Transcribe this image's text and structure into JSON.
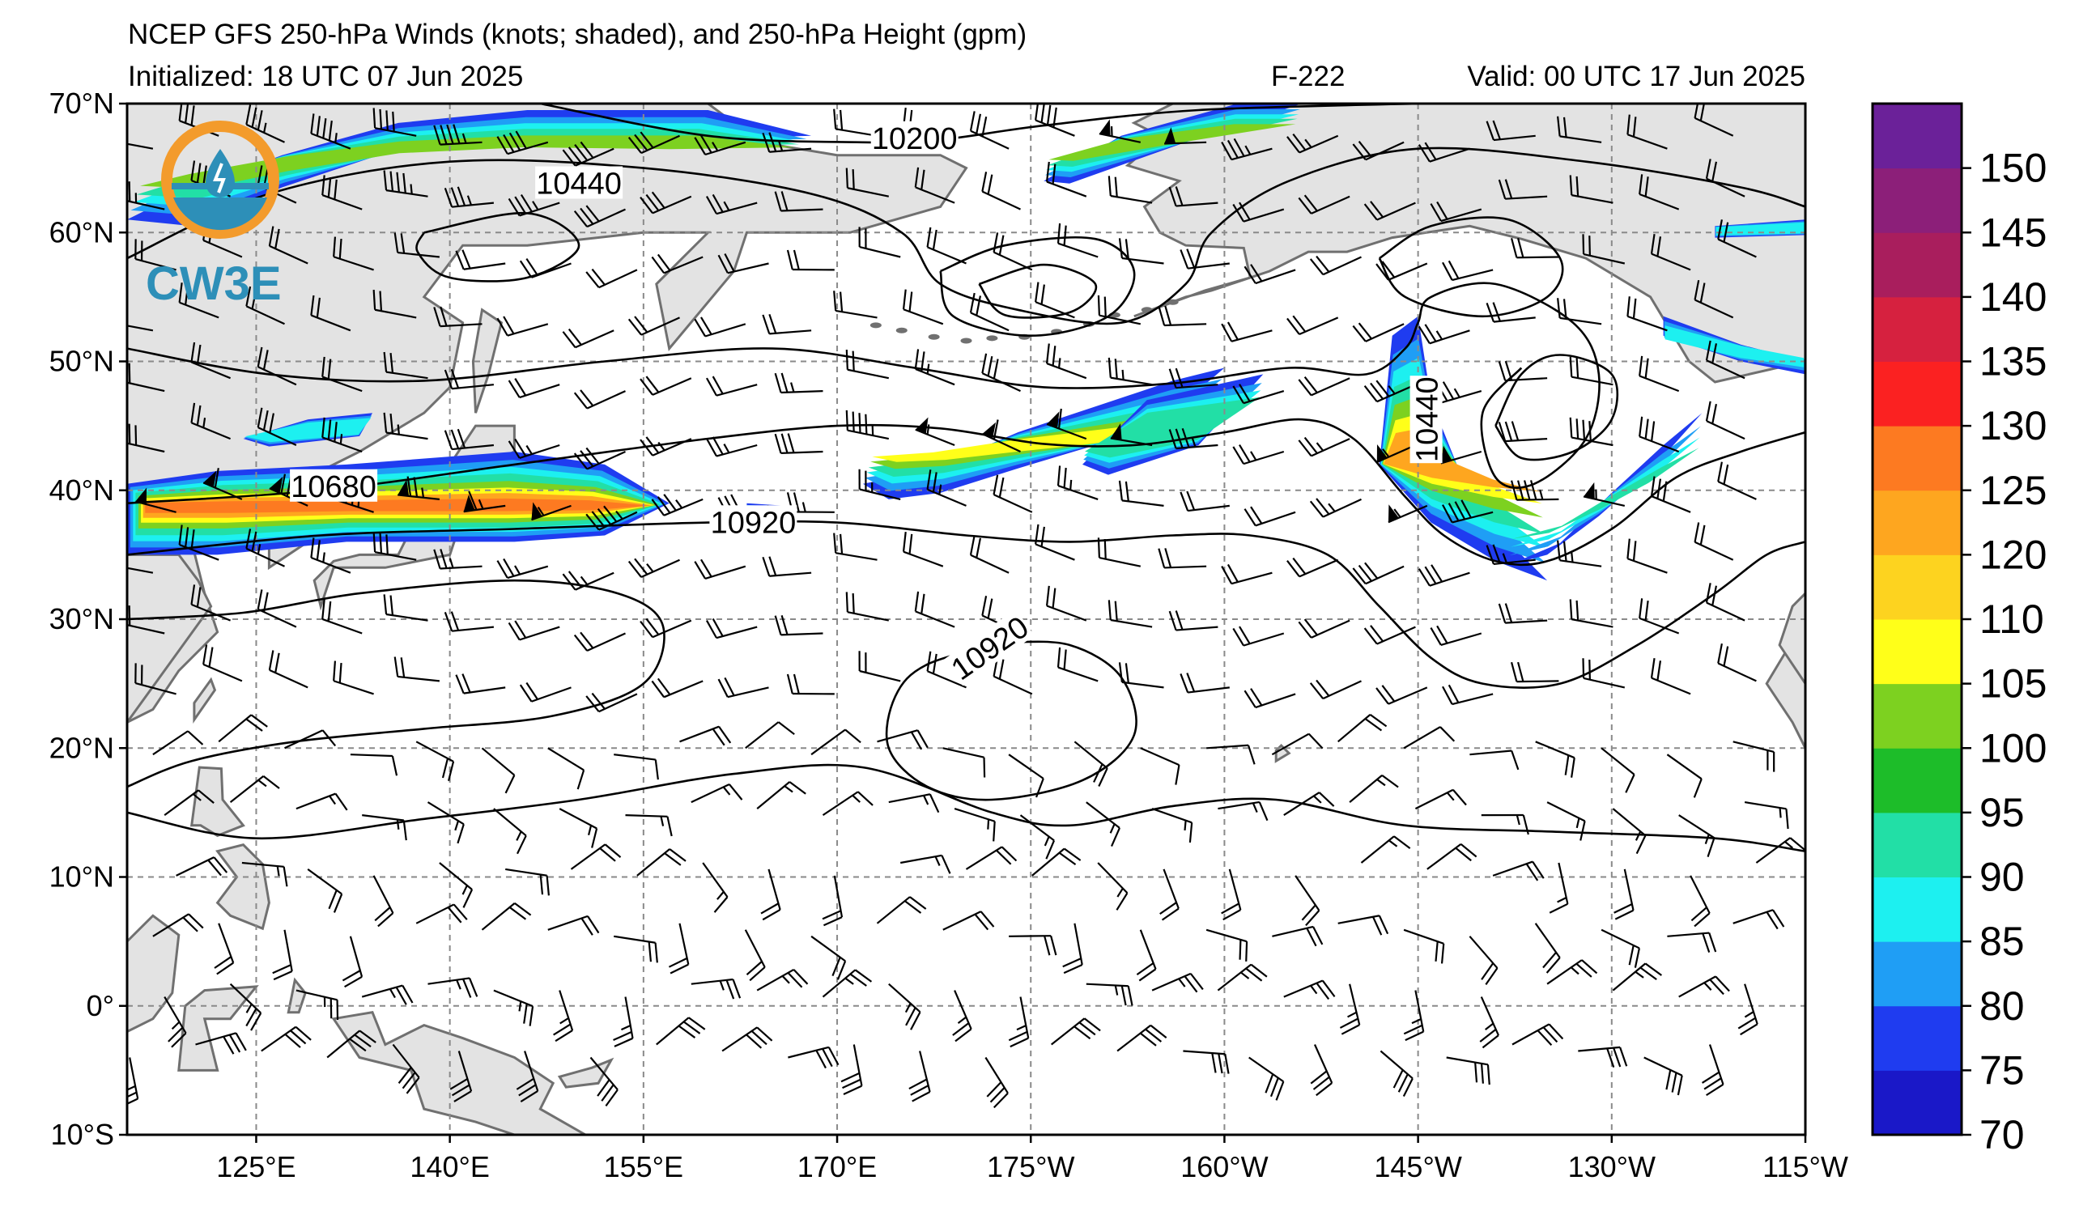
{
  "title": "NCEP GFS 250-hPa Winds (knots; shaded), and 250-hPa Height (gpm)",
  "initialized": "Initialized: 18 UTC 07 Jun 2025",
  "forecast": "F-222",
  "valid": "Valid: 00 UTC 17 Jun 2025",
  "logo": {
    "text": "CW3E",
    "icon": "cw3e-water-drop-logo-icon"
  },
  "map": {
    "lon_range": [
      115,
      245
    ],
    "lat_range": [
      -10,
      70
    ],
    "lat_ticks": [
      {
        "value": 70,
        "label": "70°N"
      },
      {
        "value": 60,
        "label": "60°N"
      },
      {
        "value": 50,
        "label": "50°N"
      },
      {
        "value": 40,
        "label": "40°N"
      },
      {
        "value": 30,
        "label": "30°N"
      },
      {
        "value": 20,
        "label": "20°N"
      },
      {
        "value": 10,
        "label": "10°N"
      },
      {
        "value": 0,
        "label": "0°"
      },
      {
        "value": -10,
        "label": "10°S"
      }
    ],
    "lon_ticks": [
      {
        "value": 125,
        "label": "125°E"
      },
      {
        "value": 140,
        "label": "140°E"
      },
      {
        "value": 155,
        "label": "155°E"
      },
      {
        "value": 170,
        "label": "170°E"
      },
      {
        "value": 185,
        "label": "175°W"
      },
      {
        "value": 200,
        "label": "160°W"
      },
      {
        "value": 215,
        "label": "145°W"
      },
      {
        "value": 230,
        "label": "130°W"
      },
      {
        "value": 245,
        "label": "115°W"
      }
    ],
    "grid": true,
    "colors": {
      "land": "#e3e3e3",
      "coast": "#707070",
      "grid": "#8a8a8a"
    }
  },
  "height_contours": [
    {
      "label": "10200",
      "label_at": [
        176,
        67
      ]
    },
    {
      "label": "10440",
      "label_at": [
        150,
        63.5
      ]
    },
    {
      "label": "10680",
      "label_at": [
        131,
        40
      ]
    },
    {
      "label": "10920",
      "label_at": [
        163.5,
        37.2
      ]
    },
    {
      "label": "10920",
      "label_at": [
        182,
        27.5
      ]
    },
    {
      "label": "10440",
      "label_at": [
        216,
        45.5
      ]
    }
  ],
  "colorbar": {
    "ticks": [
      "70",
      "75",
      "80",
      "85",
      "90",
      "95",
      "100",
      "105",
      "110",
      "120",
      "125",
      "130",
      "135",
      "140",
      "145",
      "150"
    ],
    "colors": [
      "#1a18c8",
      "#1f3cf0",
      "#1f9ef5",
      "#1df0f0",
      "#22dfa6",
      "#1dbd29",
      "#7dd120",
      "#ffff19",
      "#fdd31f",
      "#fea61f",
      "#fd7a21",
      "#fb2121",
      "#d6213f",
      "#a91e5d",
      "#8c1f79",
      "#6b2199"
    ]
  }
}
